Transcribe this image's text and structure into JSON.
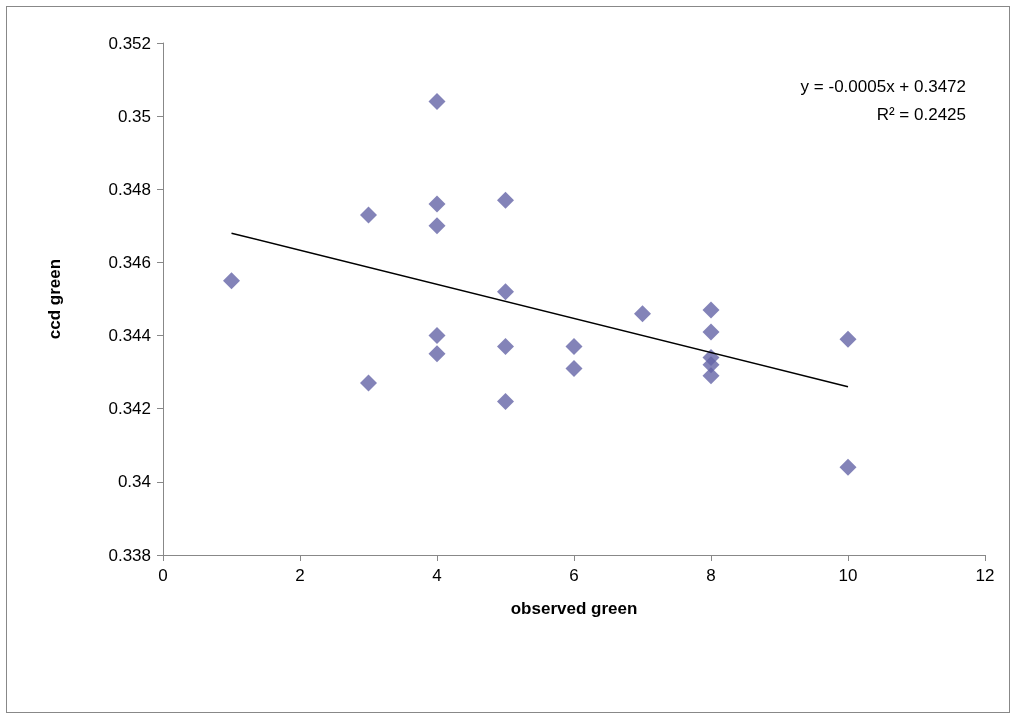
{
  "chart_data": {
    "type": "scatter",
    "xlabel": "observed green",
    "ylabel": "ccd green",
    "annotations": [
      "y = -0.0005x + 0.3472",
      "R² = 0.2425"
    ],
    "series": [
      {
        "color": "#6464a6",
        "marker": "diamond",
        "x": [
          1,
          3,
          3,
          4,
          4,
          4,
          4,
          4,
          5,
          5,
          5,
          5,
          6,
          6,
          7,
          8,
          8,
          8,
          8,
          8,
          10,
          10
        ],
        "values": [
          0.3455,
          0.3473,
          0.3427,
          0.3504,
          0.3476,
          0.347,
          0.344,
          0.3435,
          0.3477,
          0.3452,
          0.3437,
          0.3422,
          0.3437,
          0.3431,
          0.3446,
          0.3447,
          0.3441,
          0.3434,
          0.3432,
          0.3429,
          0.3439,
          0.3404
        ]
      },
      {
        "type": "line",
        "color": "#000000",
        "marker": "none",
        "x": [
          1,
          10
        ],
        "values": [
          0.3468,
          0.3426
        ]
      }
    ],
    "xlim": [
      0,
      12
    ],
    "xticks": [
      0,
      2,
      4,
      6,
      8,
      10,
      12
    ],
    "ylim": [
      0.338,
      0.352
    ],
    "yticks": [
      0.338,
      0.34,
      0.342,
      0.344,
      0.346,
      0.348,
      0.35,
      0.352
    ],
    "grid": false
  }
}
